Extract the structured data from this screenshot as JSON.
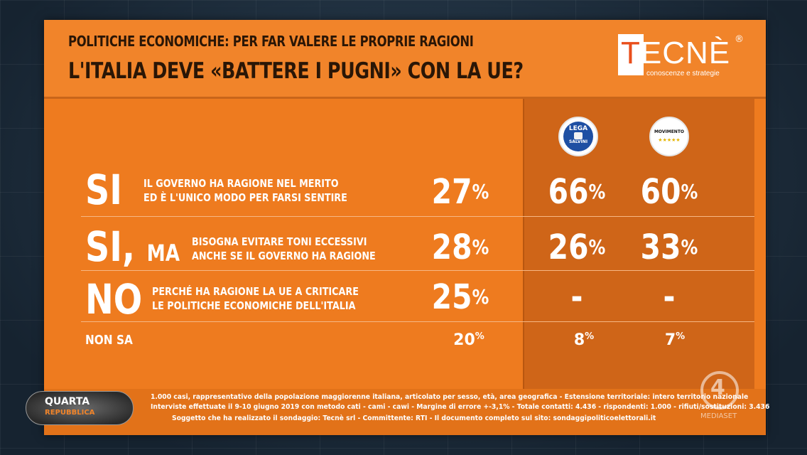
{
  "header": {
    "title_line1": "POLITICHE ECONOMICHE: PER FAR VALERE LE PROPRIE RAGIONI",
    "title_line2": "L'ITALIA DEVE «BATTERE I PUGNI» CON LA UE?",
    "logo_text": "TECNÈ",
    "logo_registered": "®",
    "logo_tagline": "conoscenze e strategie"
  },
  "parties": {
    "lega": {
      "top": "LEGA",
      "bottom": "SALVINI"
    },
    "m5s": {
      "label": "MOVIMENTO",
      "stars": "★★★★★"
    }
  },
  "rows": [
    {
      "response": "SI",
      "suffix": "",
      "desc1": "IL GOVERNO HA RAGIONE NEL MERITO",
      "desc2": "ED È L'UNICO MODO PER FARSI SENTIRE",
      "total": "27",
      "lega": "66",
      "m5s": "60"
    },
    {
      "response": "SI,",
      "suffix": "MA",
      "desc1": "BISOGNA EVITARE TONI ECCESSIVI",
      "desc2": "ANCHE SE IL GOVERNO HA RAGIONE",
      "total": "28",
      "lega": "26",
      "m5s": "33"
    },
    {
      "response": "NO",
      "suffix": "",
      "desc1": "PERCHÉ HA RAGIONE LA UE A CRITICARE",
      "desc2": "LE POLITICHE ECONOMICHE DELL'ITALIA",
      "total": "25",
      "lega": "-",
      "m5s": "-"
    },
    {
      "response": "NON SA",
      "suffix": "",
      "desc1": "",
      "desc2": "",
      "total": "20",
      "lega": "8",
      "m5s": "7"
    }
  ],
  "pct_symbol": "%",
  "footer": {
    "line1": "1.000 casi, rappresentativo della popolazione maggiorenne italiana, articolato per sesso, età, area geografica - Estensione territoriale: intero territorio nazionale",
    "line2": "Interviste effettuate il 9-10 giugno 2019 con metodo cati - cami - cawi - Margine di errore +-3,1% - Totale contatti: 4.436 - rispondenti: 1.000 - rifiuti/sostituzioni: 3.436",
    "line3": "Soggetto che ha realizzato il sondaggio: Tecnè srl - Committente: RTI - Il documento completo sul sito: sondaggipoliticoelettorali.it"
  },
  "show": {
    "name_line1": "QUARTA",
    "name_line2": "REPUBBLICA"
  },
  "network": {
    "logo_number": "4",
    "name": "MEDIASET"
  },
  "chart_data": {
    "type": "table",
    "title": "L'ITALIA DEVE «BATTERE I PUGNI» CON LA UE?",
    "subtitle": "POLITICHE ECONOMICHE: PER FAR VALERE LE PROPRIE RAGIONI",
    "categories": [
      "SI",
      "SI, MA",
      "NO",
      "NON SA"
    ],
    "series": [
      {
        "name": "",
        "values": [
          27,
          28,
          25,
          20
        ]
      },
      {
        "name": "LEGA SALVINI",
        "values": [
          66,
          26,
          null,
          8
        ]
      },
      {
        "name": "MOVIMENTO",
        "values": [
          60,
          33,
          null,
          7
        ]
      }
    ],
    "unit": "%"
  }
}
